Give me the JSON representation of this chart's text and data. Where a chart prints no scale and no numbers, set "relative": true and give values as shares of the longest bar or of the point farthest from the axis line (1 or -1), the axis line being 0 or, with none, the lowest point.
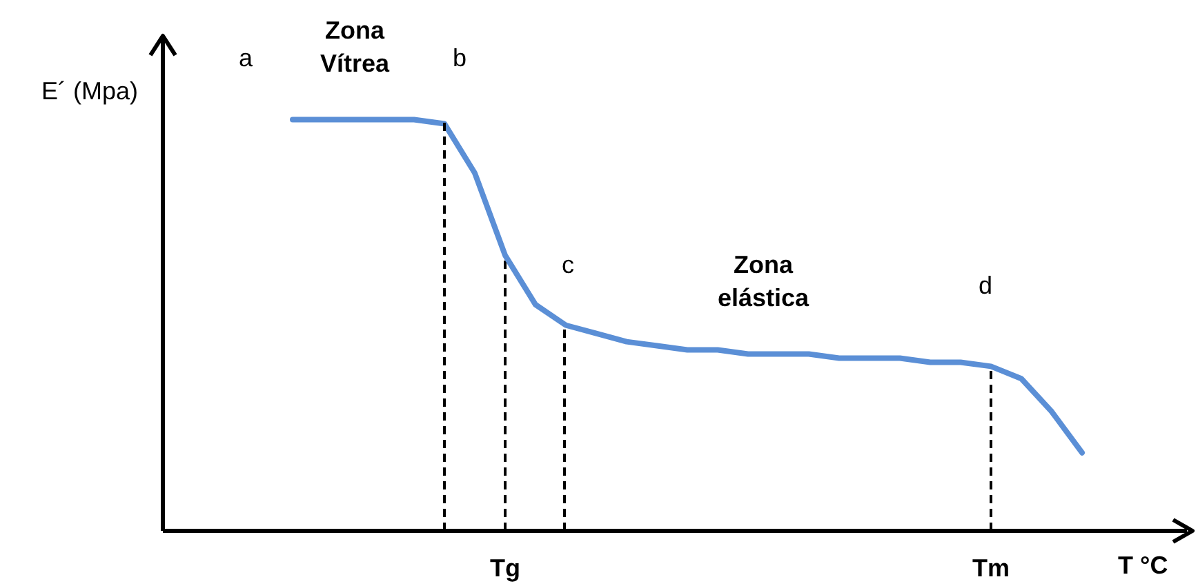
{
  "chart_data": {
    "type": "line",
    "relative": true,
    "xlabel": "T °C",
    "ylabel": "E´ (Mpa)",
    "categories": [
      null,
      null,
      null,
      null,
      null,
      null,
      null,
      null,
      null,
      null,
      null,
      "Tg",
      null,
      null,
      null,
      null,
      null,
      null,
      null,
      null,
      null,
      null,
      null,
      null,
      null,
      null,
      null,
      "Tm",
      null,
      null,
      null,
      null,
      null,
      null
    ],
    "series": [
      {
        "color": "#5b8fd6",
        "values": [
          null,
          null,
          null,
          null,
          1,
          1,
          1,
          1,
          1,
          0.99,
          0.87,
          0.67,
          0.55,
          0.5,
          0.48,
          0.46,
          0.45,
          0.44,
          0.44,
          0.43,
          0.43,
          0.43,
          0.42,
          0.42,
          0.42,
          0.41,
          0.41,
          0.4,
          0.37,
          0.29,
          0.19,
          null,
          null,
          null
        ]
      }
    ],
    "ref_lines": [
      {
        "axis": "x",
        "value": "Tg",
        "line_style": "dashed"
      },
      {
        "axis": "x",
        "value": "Tm",
        "line_style": "dashed"
      }
    ],
    "annotations": [
      "a",
      "Zona\nVítrea",
      "b",
      "c",
      "Zona\nelástica",
      "d"
    ]
  }
}
